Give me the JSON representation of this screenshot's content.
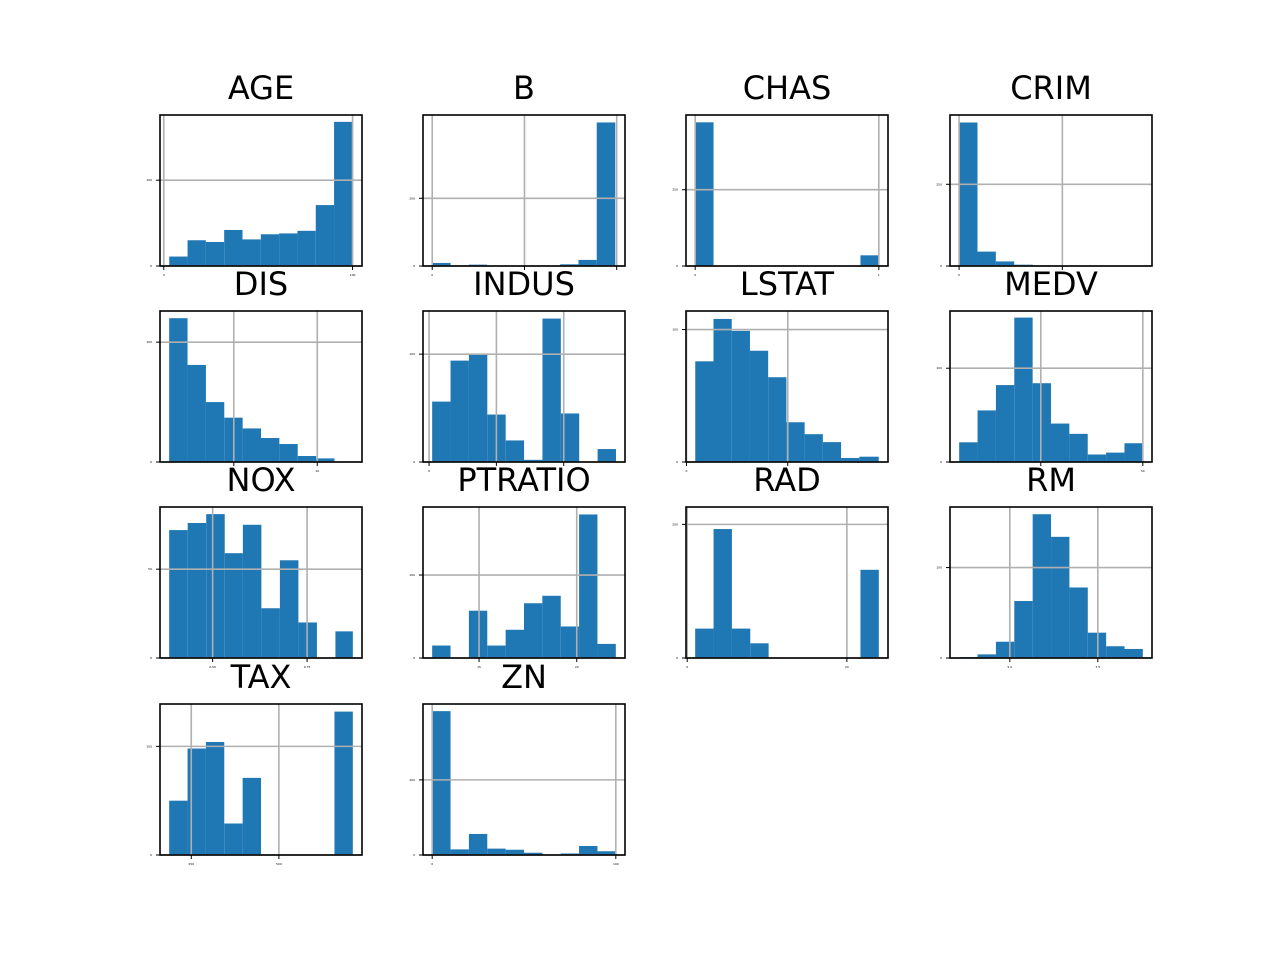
{
  "figure": {
    "background": "#ffffff",
    "bar_color": "#1f77b4",
    "grid_color": "#b0b0b0"
  },
  "chart_data": [
    {
      "type": "bar",
      "title": "AGE",
      "grid": true,
      "bin_edges": [
        2.9,
        12.6,
        22.3,
        32.0,
        41.7,
        51.4,
        61.1,
        70.8,
        80.5,
        90.2,
        99.9
      ],
      "values": [
        11,
        30,
        28,
        42,
        31,
        37,
        38,
        41,
        71,
        168
      ],
      "xlim": [
        -2,
        105
      ],
      "ylim": [
        0,
        176
      ],
      "xticks": [
        0,
        100
      ],
      "xtick_labels": [
        "0",
        "100"
      ],
      "yticks": [
        0,
        100
      ],
      "ytick_labels": [
        "0",
        "100"
      ]
    },
    {
      "type": "bar",
      "title": "B",
      "grid": true,
      "bin_edges": [
        0.3,
        39.9,
        79.5,
        119.1,
        158.7,
        198.3,
        237.9,
        277.5,
        317.1,
        356.7,
        396.9
      ],
      "values": [
        9,
        2,
        4,
        1,
        1,
        1,
        1,
        5,
        18,
        424
      ],
      "xlim": [
        -20,
        418
      ],
      "ylim": [
        0,
        446
      ],
      "xticks": [
        0,
        200,
        400
      ],
      "xtick_labels": [
        "0",
        "",
        ""
      ],
      "yticks": [
        0,
        200
      ],
      "ytick_labels": [
        "0",
        "200"
      ]
    },
    {
      "type": "bar",
      "title": "CHAS",
      "grid": true,
      "bin_edges": [
        0,
        0.1,
        0.2,
        0.3,
        0.4,
        0.5,
        0.6,
        0.7,
        0.8,
        0.9,
        1.0
      ],
      "values": [
        471,
        0,
        0,
        0,
        0,
        0,
        0,
        0,
        0,
        35
      ],
      "xlim": [
        -0.05,
        1.05
      ],
      "ylim": [
        0,
        495
      ],
      "xticks": [
        0,
        1
      ],
      "xtick_labels": [
        "0",
        "1"
      ],
      "yticks": [
        0,
        250
      ],
      "ytick_labels": [
        "0",
        "250"
      ]
    },
    {
      "type": "bar",
      "title": "CRIM",
      "grid": true,
      "bin_edges": [
        0.006,
        8.9,
        17.8,
        26.7,
        35.6,
        44.5,
        53.4,
        62.3,
        71.2,
        80.1,
        89.0
      ],
      "values": [
        439,
        44,
        14,
        4,
        2,
        1,
        0,
        1,
        0,
        1
      ],
      "xlim": [
        -4.4,
        93.4
      ],
      "ylim": [
        0,
        462
      ],
      "xticks": [
        0,
        50
      ],
      "xtick_labels": [
        "0",
        ""
      ],
      "yticks": [
        0,
        250
      ],
      "ytick_labels": [
        "0",
        "250"
      ]
    },
    {
      "type": "bar",
      "title": "DIS",
      "grid": true,
      "bin_edges": [
        1.13,
        2.23,
        3.33,
        4.43,
        5.53,
        6.63,
        7.73,
        8.83,
        9.93,
        11.03,
        12.13
      ],
      "values": [
        120,
        81,
        50,
        37,
        28,
        20,
        15,
        5,
        3,
        0
      ],
      "xlim": [
        0.58,
        12.68
      ],
      "ylim": [
        0,
        126
      ],
      "xticks": [
        5,
        10
      ],
      "xtick_labels": [
        "",
        "10"
      ],
      "yticks": [
        0,
        100
      ],
      "ytick_labels": [
        "0",
        "100"
      ]
    },
    {
      "type": "bar",
      "title": "INDUS",
      "grid": true,
      "bin_edges": [
        0.46,
        3.19,
        5.92,
        8.65,
        11.38,
        14.11,
        16.84,
        19.57,
        22.3,
        25.03,
        27.76
      ],
      "values": [
        56,
        94,
        100,
        44,
        20,
        2,
        133,
        45,
        0,
        12
      ],
      "xlim": [
        -0.9,
        29.1
      ],
      "ylim": [
        0,
        140
      ],
      "xticks": [
        0,
        10,
        20
      ],
      "xtick_labels": [
        "0",
        "",
        ""
      ],
      "yticks": [
        0,
        100
      ],
      "ytick_labels": [
        "0",
        "100"
      ]
    },
    {
      "type": "bar",
      "title": "LSTAT",
      "grid": true,
      "bin_edges": [
        1.73,
        5.33,
        8.93,
        12.53,
        16.13,
        19.73,
        23.33,
        26.93,
        30.53,
        34.13,
        37.97
      ],
      "values": [
        76,
        108,
        99,
        84,
        64,
        30,
        21,
        15,
        3,
        4
      ],
      "xlim": [
        -0.1,
        39.8
      ],
      "ylim": [
        0,
        114
      ],
      "xticks": [
        0,
        20
      ],
      "xtick_labels": [
        "0",
        ""
      ],
      "yticks": [
        0,
        100
      ],
      "ytick_labels": [
        "0",
        "100"
      ]
    },
    {
      "type": "bar",
      "title": "MEDV",
      "grid": true,
      "bin_edges": [
        5,
        9.5,
        14,
        18.5,
        23,
        27.5,
        32,
        36.5,
        41,
        45.5,
        50
      ],
      "values": [
        21,
        55,
        82,
        154,
        84,
        41,
        30,
        8,
        10,
        20
      ],
      "xlim": [
        2.75,
        52.25
      ],
      "ylim": [
        0,
        161
      ],
      "xticks": [
        25,
        50
      ],
      "xtick_labels": [
        "",
        "50"
      ],
      "yticks": [
        0,
        100
      ],
      "ytick_labels": [
        "0",
        "100"
      ]
    },
    {
      "type": "bar",
      "title": "NOX",
      "grid": true,
      "bin_edges": [
        0.385,
        0.434,
        0.483,
        0.532,
        0.58,
        0.629,
        0.678,
        0.727,
        0.776,
        0.825,
        0.871
      ],
      "values": [
        72,
        76,
        81,
        59,
        75,
        28,
        55,
        20,
        0,
        15
      ],
      "xlim": [
        0.3607,
        0.8953
      ],
      "ylim": [
        0,
        85
      ],
      "xticks": [
        0.5,
        0.75
      ],
      "xtick_labels": [
        "0.50",
        "0.75"
      ],
      "yticks": [
        0,
        50
      ],
      "ytick_labels": [
        "0",
        "50"
      ]
    },
    {
      "type": "bar",
      "title": "PTRATIO",
      "grid": true,
      "bin_edges": [
        12.6,
        13.54,
        14.48,
        15.42,
        16.36,
        17.3,
        18.24,
        19.18,
        20.12,
        21.06,
        22.0
      ],
      "values": [
        15,
        0,
        57,
        15,
        34,
        66,
        75,
        38,
        173,
        17
      ],
      "xlim": [
        12.13,
        22.47
      ],
      "ylim": [
        0,
        182
      ],
      "xticks": [
        15,
        20
      ],
      "xtick_labels": [
        "15",
        "20"
      ],
      "yticks": [
        0,
        100
      ],
      "ytick_labels": [
        "0",
        "100"
      ]
    },
    {
      "type": "bar",
      "title": "RAD",
      "grid": true,
      "bin_edges": [
        1,
        3.3,
        5.6,
        7.9,
        10.2,
        12.5,
        14.8,
        17.1,
        19.4,
        21.7,
        24
      ],
      "values": [
        44,
        193,
        44,
        22,
        0,
        0,
        0,
        0,
        0,
        132
      ],
      "xlim": [
        -0.15,
        25.15
      ],
      "ylim": [
        0,
        226
      ],
      "xticks": [
        0,
        20
      ],
      "xtick_labels": [
        "0",
        "20"
      ],
      "yticks": [
        0,
        200
      ],
      "ytick_labels": [
        "0",
        "200"
      ]
    },
    {
      "type": "bar",
      "title": "RM",
      "grid": true,
      "bin_edges": [
        3.561,
        4.083,
        4.605,
        5.127,
        5.649,
        6.171,
        6.693,
        7.215,
        7.737,
        8.259,
        8.78
      ],
      "values": [
        1,
        4,
        18,
        63,
        159,
        134,
        78,
        28,
        13,
        10
      ],
      "xlim": [
        3.3,
        9.04
      ],
      "ylim": [
        0,
        167
      ],
      "xticks": [
        5,
        7.5
      ],
      "xtick_labels": [
        "5.0",
        "7.5"
      ],
      "yticks": [
        0,
        100
      ],
      "ytick_labels": [
        "0",
        "100"
      ]
    },
    {
      "type": "bar",
      "title": "TAX",
      "grid": true,
      "bin_edges": [
        187,
        239.4,
        291.8,
        344.2,
        396.6,
        449,
        501.4,
        553.8,
        606.2,
        658.6,
        711
      ],
      "values": [
        50,
        98,
        104,
        29,
        71,
        0,
        0,
        0,
        0,
        132
      ],
      "xlim": [
        160.8,
        737.2
      ],
      "ylim": [
        0,
        139
      ],
      "xticks": [
        250,
        500
      ],
      "xtick_labels": [
        "250",
        "500"
      ],
      "yticks": [
        0,
        100
      ],
      "ytick_labels": [
        "0",
        "100"
      ]
    },
    {
      "type": "bar",
      "title": "ZN",
      "grid": true,
      "bin_edges": [
        0,
        10,
        20,
        30,
        40,
        50,
        60,
        70,
        80,
        90,
        100
      ],
      "values": [
        383,
        15,
        56,
        17,
        14,
        6,
        1,
        4,
        24,
        10
      ],
      "xlim": [
        -5,
        105
      ],
      "ylim": [
        0,
        402
      ],
      "xticks": [
        0,
        100
      ],
      "xtick_labels": [
        "0",
        "100"
      ],
      "yticks": [
        0,
        200
      ],
      "ytick_labels": [
        "0",
        "200"
      ]
    }
  ]
}
